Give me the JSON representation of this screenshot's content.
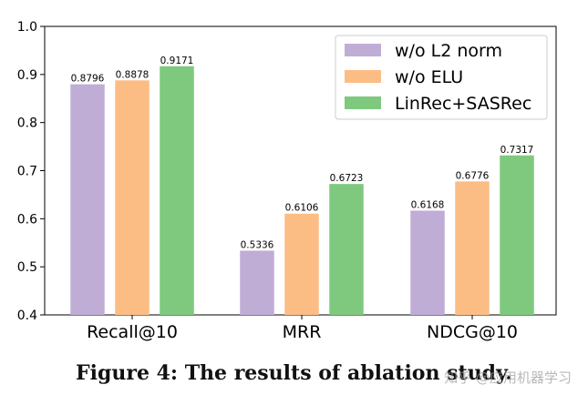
{
  "chart_data": {
    "type": "bar",
    "categories": [
      "Recall@10",
      "MRR",
      "NDCG@10"
    ],
    "series": [
      {
        "name": "w/o L2 norm",
        "color": "#bfadd6",
        "values": [
          0.8796,
          0.5336,
          0.6168
        ],
        "labels": [
          "0.8796",
          "0.5336",
          "0.6168"
        ]
      },
      {
        "name": "w/o ELU",
        "color": "#fcbd85",
        "values": [
          0.8878,
          0.6106,
          0.6776
        ],
        "labels": [
          "0.8878",
          "0.6106",
          "0.6776"
        ]
      },
      {
        "name": "LinRec+SASRec",
        "color": "#7fc97f",
        "values": [
          0.9171,
          0.6723,
          0.7317
        ],
        "labels": [
          "0.9171",
          "0.6723",
          "0.7317"
        ]
      }
    ],
    "ylim": [
      0.4,
      1.0
    ],
    "yticks": [
      "0.4",
      "0.5",
      "0.6",
      "0.7",
      "0.8",
      "0.9",
      "1.0"
    ],
    "legend_position": "top-right",
    "grid": false
  },
  "caption": "Figure 4: The results of ablation study.",
  "watermark": "知乎 @应用机器学习"
}
